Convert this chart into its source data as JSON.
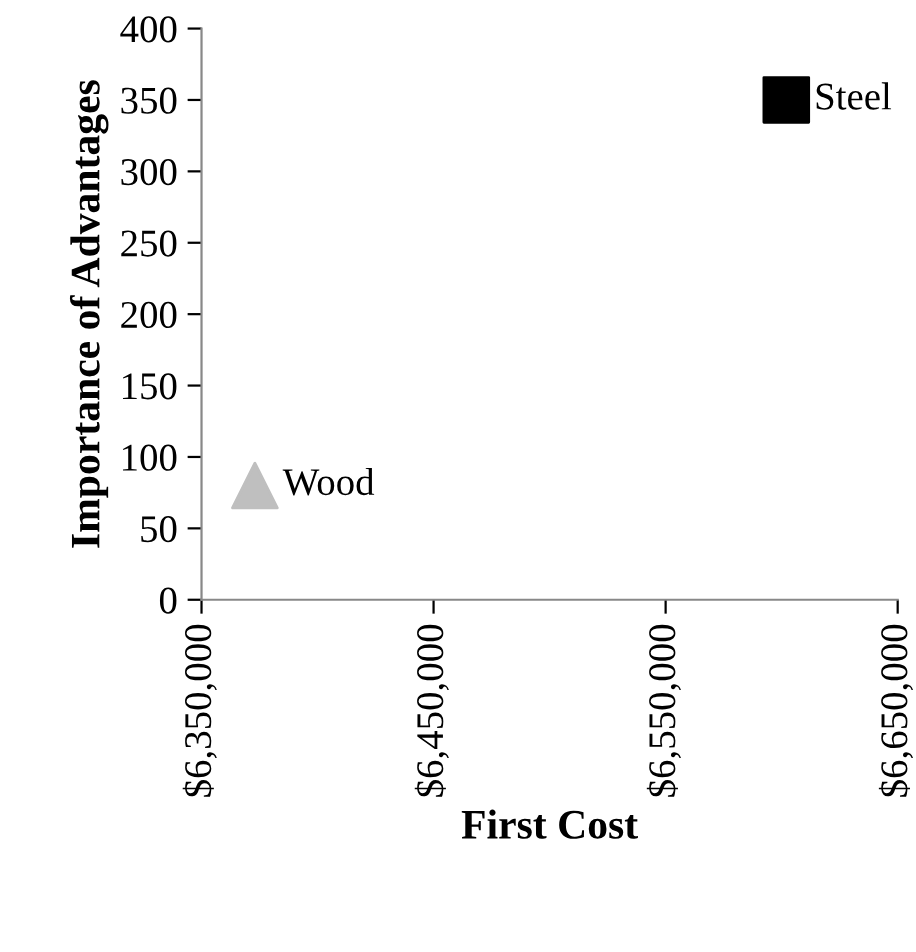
{
  "chart_data": {
    "type": "scatter",
    "xlabel": "First Cost",
    "ylabel": "Importance of Advantages",
    "x": [
      6373000,
      6602000
    ],
    "series": [
      {
        "values": [
          80,
          null
        ],
        "color": "#bfbfbf",
        "marker": "triangle"
      },
      {
        "values": [
          null,
          350
        ],
        "color": "#000000",
        "marker": "square"
      }
    ],
    "annotations": [
      {
        "text": "Wood",
        "x": 6373000,
        "y": 80
      },
      {
        "text": "Steel",
        "x": 6602000,
        "y": 350
      }
    ],
    "xlim": [
      6350000,
      6650000
    ],
    "xticks": [
      {
        "value": 6350000,
        "label": "$6,350,000"
      },
      {
        "value": 6450000,
        "label": "$6,450,000"
      },
      {
        "value": 6550000,
        "label": "$6,550,000"
      },
      {
        "value": 6650000,
        "label": "$6,650,000"
      }
    ],
    "ylim": [
      0,
      400
    ],
    "yticks": [
      0,
      50,
      100,
      150,
      200,
      250,
      300,
      350,
      400
    ],
    "grid": false,
    "legend": false
  }
}
